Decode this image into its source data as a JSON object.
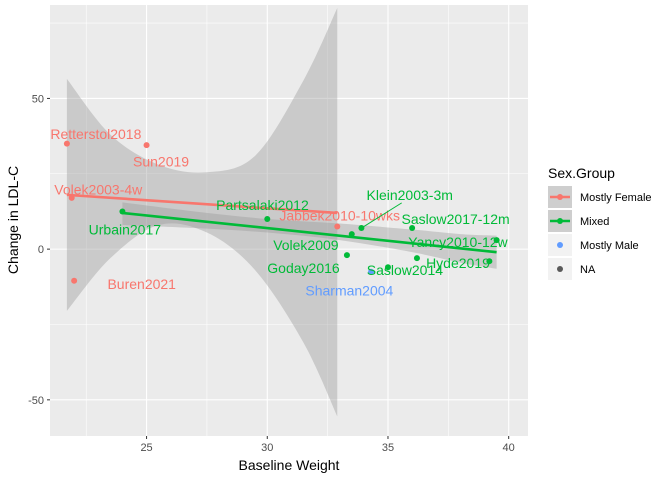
{
  "chart_data": {
    "type": "scatter",
    "xlabel": "Baseline Weight",
    "ylabel": "Change in LDL-C",
    "xlim": [
      21,
      40.8
    ],
    "ylim": [
      -62,
      81
    ],
    "x_ticks": [
      25,
      30,
      35,
      40
    ],
    "y_ticks": [
      -50,
      0,
      50
    ],
    "grid": true,
    "legend": {
      "title": "Sex.Group",
      "placement": "right",
      "entries": [
        {
          "label": "Mostly Female",
          "color": "#F8766D",
          "has_line": true
        },
        {
          "label": "Mixed",
          "color": "#00BA38",
          "has_line": true
        },
        {
          "label": "Mostly Male",
          "color": "#619CFF",
          "has_line": false
        },
        {
          "label": "NA",
          "color": "#595959",
          "has_line": false
        }
      ]
    },
    "series": [
      {
        "name": "Mostly Female",
        "color": "#F8766D",
        "points": [
          {
            "x": 21.7,
            "y": 35.0,
            "label": "Retterstol2018",
            "lx": 22.9,
            "ly": 38.2
          },
          {
            "x": 25.0,
            "y": 34.5,
            "label": "Sun2019",
            "lx": 25.6,
            "ly": 29.0
          },
          {
            "x": 21.9,
            "y": 17.0,
            "label": "Volek2003-4w",
            "lx": 23.0,
            "ly": 19.8
          },
          {
            "x": 22.0,
            "y": -10.5,
            "label": "Buren2021",
            "lx": 24.8,
            "ly": -11.5
          },
          {
            "x": 32.9,
            "y": 7.5,
            "label": "Jabbek2010-10wks",
            "lx": 33.0,
            "ly": 11.2
          }
        ]
      },
      {
        "name": "Mixed",
        "color": "#00BA38",
        "points": [
          {
            "x": 24.0,
            "y": 12.5,
            "label": "Urbain2017",
            "lx": 24.1,
            "ly": 6.5
          },
          {
            "x": 30.0,
            "y": 10.0,
            "label": "Partsalaki2012",
            "lx": 29.8,
            "ly": 14.7
          },
          {
            "x": 33.9,
            "y": 7.0,
            "label": "Klein2003-3m",
            "lx": 35.9,
            "ly": 18.0
          },
          {
            "x": 33.5,
            "y": 5.0,
            "label": "Volek2009",
            "lx": 31.6,
            "ly": 1.4
          },
          {
            "x": 33.3,
            "y": -2.0,
            "label": "Goday2016",
            "lx": 31.5,
            "ly": -6.3
          },
          {
            "x": 36.0,
            "y": 7.0,
            "label": "Saslow2017-12m",
            "lx": 37.8,
            "ly": 10.0
          },
          {
            "x": 36.2,
            "y": -3.0,
            "label": "Yancy2010-12w",
            "lx": 37.9,
            "ly": 2.4
          },
          {
            "x": 39.5,
            "y": 3.0,
            "label": "",
            "lx": 0,
            "ly": 0
          },
          {
            "x": 39.2,
            "y": -4.0,
            "label": "Hyde2019",
            "lx": 37.9,
            "ly": -4.6
          },
          {
            "x": 35.0,
            "y": -6.0,
            "label": "Saslow2014",
            "lx": 35.7,
            "ly": -7.0
          }
        ]
      },
      {
        "name": "Mostly Male",
        "color": "#619CFF",
        "points": [
          {
            "x": 34.3,
            "y": -7.5,
            "label": "Sharman2004",
            "lx": 33.4,
            "ly": -13.8
          }
        ]
      }
    ],
    "fits": [
      {
        "name": "Mostly Female",
        "color": "#F8766D",
        "x": [
          21.7,
          32.9
        ],
        "y": [
          18.0,
          12.0
        ],
        "band_upper": [
          [
            21.7,
            56.5
          ],
          [
            23.5,
            38.0
          ],
          [
            25.5,
            28.0
          ],
          [
            27.5,
            25.5
          ],
          [
            29.5,
            31.0
          ],
          [
            31.5,
            56.0
          ],
          [
            32.9,
            80.0
          ]
        ],
        "band_lower": [
          [
            21.7,
            -20.5
          ],
          [
            23.5,
            -3.0
          ],
          [
            25.5,
            8.0
          ],
          [
            27.5,
            5.5
          ],
          [
            29.5,
            -7.0
          ],
          [
            31.5,
            -31.0
          ],
          [
            32.9,
            -55.5
          ]
        ]
      },
      {
        "name": "Mixed",
        "color": "#00BA38",
        "x": [
          24.0,
          39.5
        ],
        "y": [
          12.0,
          -1.0
        ],
        "band_upper": [
          [
            24.0,
            15.5
          ],
          [
            27.0,
            12.5
          ],
          [
            30.0,
            10.0
          ],
          [
            33.0,
            8.5
          ],
          [
            36.0,
            6.5
          ],
          [
            38.0,
            5.0
          ],
          [
            39.5,
            4.5
          ]
        ],
        "band_lower": [
          [
            24.0,
            8.0
          ],
          [
            27.0,
            7.0
          ],
          [
            30.0,
            5.5
          ],
          [
            33.0,
            3.0
          ],
          [
            36.0,
            -1.0
          ],
          [
            38.0,
            -4.5
          ],
          [
            39.5,
            -6.5
          ]
        ]
      }
    ]
  }
}
